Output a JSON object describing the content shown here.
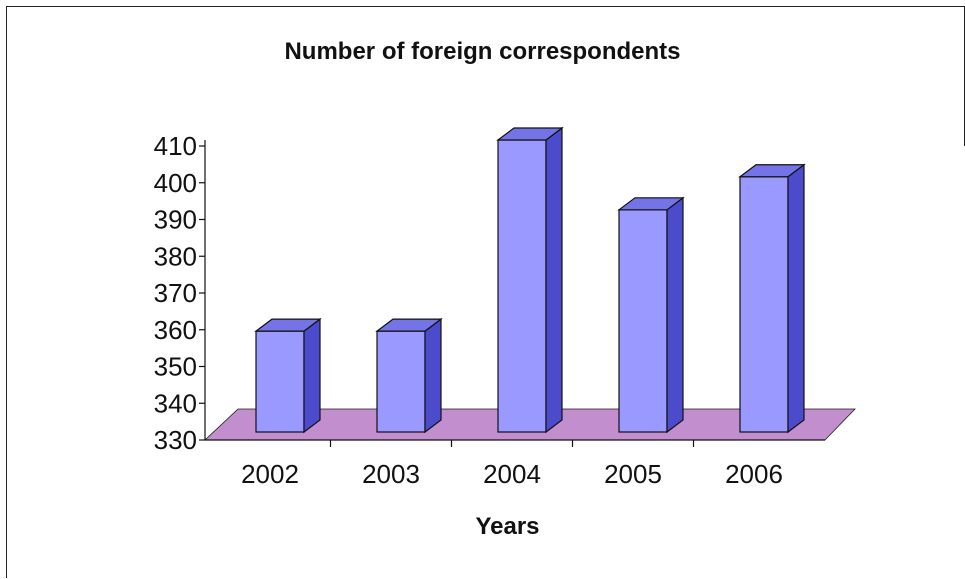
{
  "chart_data": {
    "type": "bar",
    "title": "Number of foreign correspondents",
    "xlabel": "Years",
    "ylabel": "",
    "categories": [
      "2002",
      "2003",
      "2004",
      "2005",
      "2006"
    ],
    "values": [
      358,
      358,
      410,
      391,
      400
    ],
    "ylim": [
      330,
      410
    ],
    "yticks": [
      "330",
      "340",
      "350",
      "360",
      "370",
      "380",
      "390",
      "400",
      "410"
    ],
    "grid": false,
    "legend": "none",
    "style": "3d-column",
    "colors": {
      "bar_front": "#9999FF",
      "bar_side": "#4B4BCC",
      "bar_top": "#7474E6",
      "floor": "#C088CC",
      "stroke": "#111111"
    }
  }
}
